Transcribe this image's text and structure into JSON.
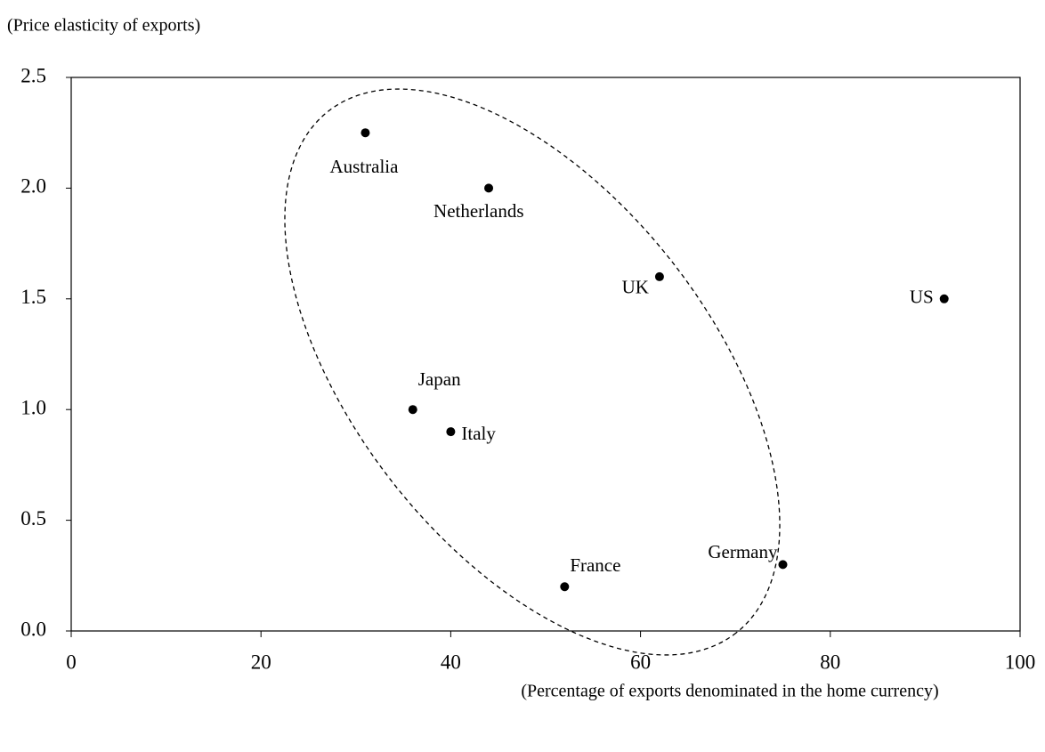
{
  "chart_data": {
    "type": "scatter",
    "y_label": "(Price elasticity of exports)",
    "x_label": "(Percentage of exports denominated in the home currency)",
    "labels": [
      "Australia",
      "Netherlands",
      "UK",
      "US",
      "Japan",
      "Italy",
      "France",
      "Germany"
    ],
    "x": [
      31,
      44,
      62,
      92,
      36,
      40,
      52,
      75
    ],
    "values": [
      2.25,
      2.0,
      1.6,
      1.5,
      1.0,
      0.9,
      0.2,
      0.3
    ],
    "color": "#000000",
    "xlim": [
      0,
      100
    ],
    "xticks": [
      0,
      20,
      40,
      60,
      80,
      100
    ],
    "ylim": [
      0,
      2.5
    ],
    "yticks": [
      {
        "value": 0,
        "label": "0.0"
      },
      0.5,
      {
        "value": 1,
        "label": "1.0"
      },
      1.5,
      {
        "value": 2,
        "label": "2.0"
      },
      2.5
    ]
  }
}
